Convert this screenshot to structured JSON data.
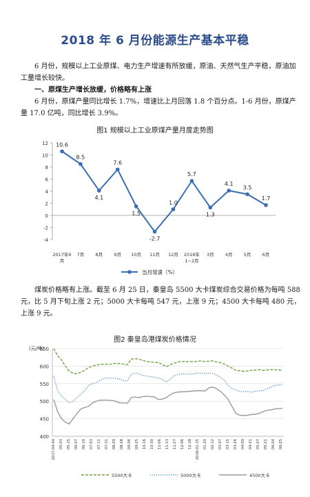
{
  "title": "2018 年 6 月份能源生产基本平稳",
  "intro": "6 月份，规模以上工业原煤、电力生产增速有所放缓，原油、天然气生产平稳，原油加工量增长较快。",
  "section1_heading": "一、原煤生产增长放缓，价格略有上涨",
  "section1_text": "6 月份，原煤产量同比增长 1.7%，增速比上月回落 1.8 个百分点。1-6 月份，原煤产量 17.0 亿吨，同比增长 3.9%。",
  "coal_price_text": "煤炭价格略有上涨。截至 6 月 25 日，秦皇岛 5500 大卡煤炭综合交易价格为每吨 588 元，比 5 月下旬上涨 2 元；5000 大卡每吨 547 元，上涨 9 元；4500 大卡每吨 480 元，上涨 9 元。",
  "chart_data": [
    {
      "type": "line",
      "title": "图1  规模以上工业原煤产量月度走势图",
      "categories": [
        "2017年6\n月",
        "7月",
        "8月",
        "9月",
        "10月",
        "11月",
        "12月",
        "2018年\n1~2月",
        "3月",
        "4月",
        "5月",
        "6月"
      ],
      "series": [
        {
          "name": "当月增速（%）",
          "values": [
            10.6,
            8.5,
            4.1,
            7.6,
            1.5,
            -2.7,
            1.0,
            5.7,
            1.3,
            4.1,
            3.5,
            1.7
          ]
        }
      ],
      "data_labels": [
        "10.6",
        "8.5",
        "4.1",
        "7.6",
        "1.5",
        "-2.7",
        "1.0",
        "5.7",
        "1.3",
        "4.1",
        "3.5",
        "1.7"
      ],
      "ylim": [
        -4,
        12
      ],
      "yticks": [
        "12",
        "10",
        "8",
        "6",
        "4",
        "2",
        "0",
        "-2",
        "-4"
      ],
      "grid": false,
      "legend": "bottom",
      "color": "#3a6eb4"
    },
    {
      "type": "line",
      "title": "图2  秦皇岛港煤炭价格情况",
      "ylabel": "(元/吨)",
      "ylim": [
        400,
        650
      ],
      "yticks": [
        "650",
        "600",
        "550",
        "500",
        "450",
        "400"
      ],
      "x_labels": [
        "2017-04-04",
        "05-03",
        "05-15",
        "06-07",
        "06-19",
        "07-03",
        "07-11",
        "07-31",
        "08-09",
        "08-28",
        "09-06",
        "09-25",
        "10-16",
        "10-30",
        "11-06",
        "11-13",
        "11-27",
        "12-06",
        "12-18",
        "2018-01-15",
        "01-29",
        "02-12",
        "03-07",
        "03-15",
        "03-26",
        "04-09",
        "04-21",
        "05-07",
        "05-21",
        "06-04",
        "06-25"
      ],
      "grid": true,
      "legend": "bottom",
      "series": [
        {
          "name": "5500大卡",
          "color": "#6ea33f",
          "style": "dashed",
          "values": [
            650,
            630,
            618,
            600,
            585,
            580,
            578,
            583,
            588,
            596,
            600,
            603,
            605,
            606,
            605,
            606,
            608,
            607,
            606,
            604,
            620,
            621,
            620,
            616,
            613,
            612,
            611,
            610,
            605,
            598,
            604,
            608,
            612,
            614,
            612,
            614,
            612,
            614,
            615,
            613,
            614,
            615,
            612,
            610,
            606,
            600,
            594,
            588,
            587,
            585,
            586,
            588,
            589,
            590,
            588,
            589,
            590,
            590,
            589,
            588
          ]
        },
        {
          "name": "5000大卡",
          "color": "#5b8fd0",
          "style": "dotted",
          "values": [
            572,
            530,
            515,
            505,
            495,
            500,
            510,
            520,
            530,
            545,
            550,
            553,
            560,
            565,
            566,
            566,
            565,
            563,
            558,
            558,
            577,
            580,
            578,
            573,
            572,
            570,
            568,
            566,
            562,
            555,
            562,
            572,
            576,
            578,
            578,
            577,
            578,
            580,
            580,
            579,
            580,
            580,
            574,
            568,
            560,
            545,
            535,
            532,
            528,
            527,
            528,
            526,
            528,
            530,
            530,
            535,
            540,
            545,
            546,
            547
          ]
        },
        {
          "name": "4500大卡",
          "color": "#9a9a9a",
          "style": "solid",
          "values": [
            505,
            470,
            450,
            440,
            435,
            450,
            465,
            478,
            482,
            485,
            495,
            500,
            503,
            503,
            503,
            502,
            500,
            495,
            495,
            494,
            510,
            512,
            510,
            513,
            514,
            513,
            512,
            505,
            506,
            510,
            518,
            524,
            526,
            527,
            527,
            528,
            529,
            530,
            530,
            529,
            538,
            540,
            536,
            528,
            518,
            505,
            485,
            465,
            460,
            459,
            460,
            462,
            463,
            465,
            470,
            474,
            475,
            478,
            479,
            480
          ]
        }
      ]
    }
  ]
}
